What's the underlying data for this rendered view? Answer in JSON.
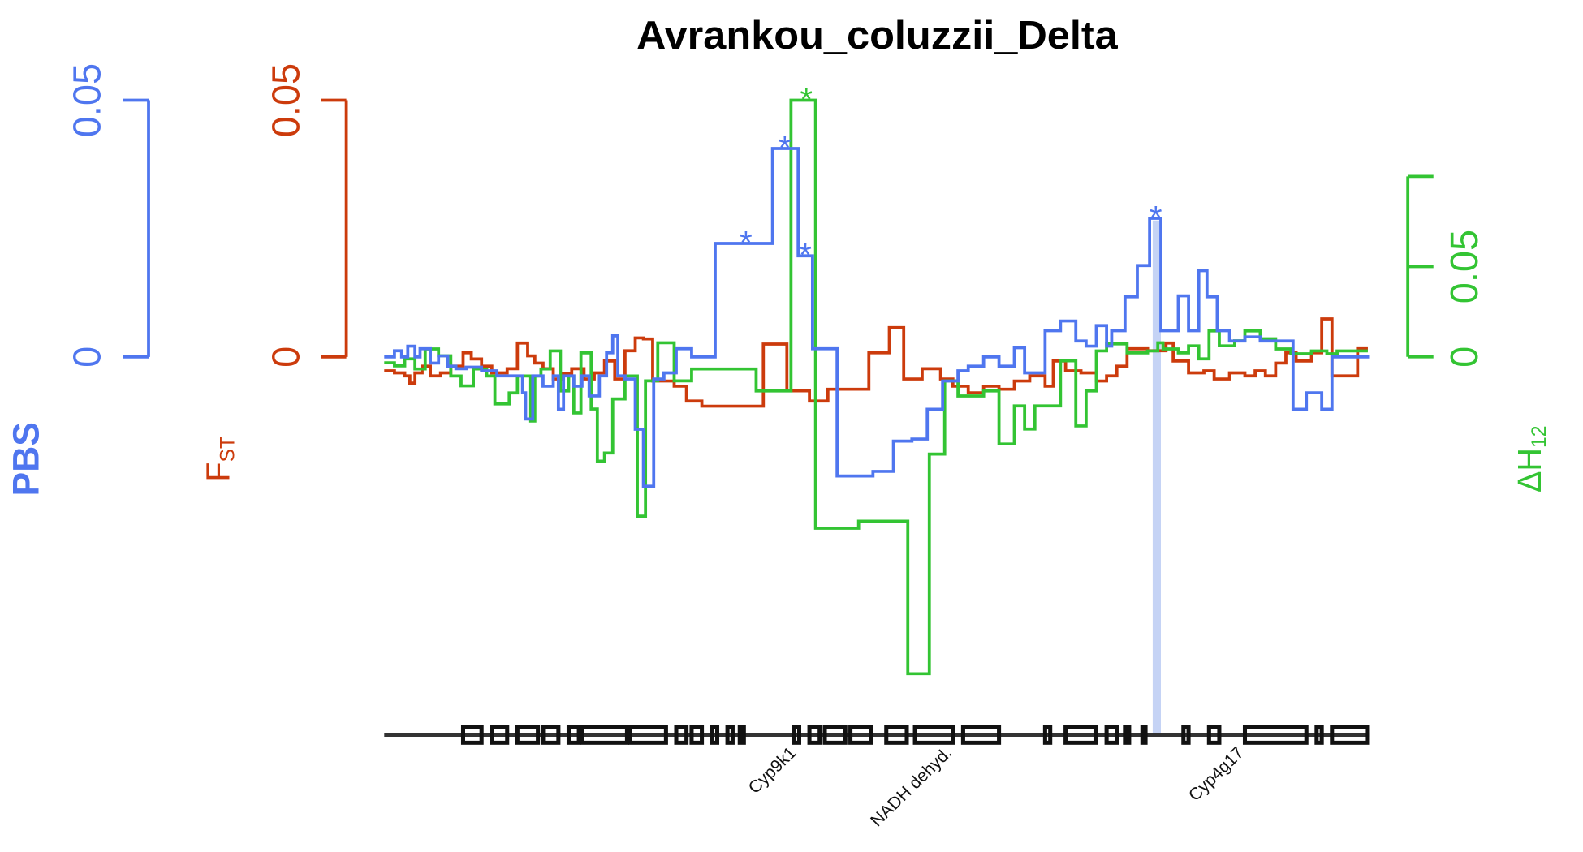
{
  "chart_data": {
    "type": "step",
    "title": "Avrankou_coluzzii_Delta",
    "xlim": [
      0,
      962
    ],
    "ylim": [
      -0.0736,
      0.05
    ],
    "yticks": [
      0,
      0.05
    ],
    "ylabel": "PBS",
    "y2lim": [
      -0.0736,
      0.05
    ],
    "y2ticks": [
      0,
      0.05
    ],
    "y2label": {
      "text": "F",
      "sub": "ST"
    },
    "y3lim": [
      -0.2094,
      0.1422
    ],
    "y3ticks": [
      0,
      0.05,
      {
        "value": 0.1,
        "label": null
      }
    ],
    "y3label": {
      "text": "ΔH",
      "sub": "12"
    },
    "series": [
      {
        "name": "PBS",
        "color": "#4f76ef",
        "axis": "y",
        "x": [
          0,
          10,
          17,
          23,
          30,
          35,
          45,
          53,
          62,
          70,
          80,
          95,
          110,
          125,
          135,
          138,
          145,
          155,
          165,
          170,
          175,
          185,
          193,
          200,
          210,
          217,
          223,
          228,
          235,
          245,
          253,
          263,
          273,
          285,
          300,
          323,
          379,
          404,
          418,
          442,
          477,
          497,
          515,
          530,
          545,
          560,
          570,
          585,
          600,
          615,
          625,
          645,
          660,
          675,
          685,
          695,
          705,
          710,
          723,
          735,
          747,
          758,
          770,
          775,
          785,
          795,
          803,
          813,
          825,
          840,
          855,
          870,
          887,
          900,
          915,
          925,
          962
        ],
        "values": [
          0,
          0.0012,
          0,
          0.0021,
          0,
          0.0016,
          -0.0012,
          0.0002,
          -0.0018,
          -0.0023,
          -0.002,
          -0.0027,
          -0.0037,
          -0.0037,
          -0.007,
          -0.0121,
          -0.0037,
          -0.0057,
          -0.0037,
          -0.0102,
          -0.0037,
          -0.0057,
          -0.0037,
          -0.0076,
          -0.0037,
          0.0008,
          0.0041,
          -0.0037,
          -0.0043,
          -0.0141,
          -0.0252,
          -0.0043,
          -0.0031,
          0.0016,
          0,
          0.0221,
          0.0406,
          0.0197,
          0.0016,
          -0.0232,
          -0.0223,
          -0.0164,
          -0.016,
          -0.0102,
          -0.0047,
          -0.0027,
          -0.0018,
          0,
          -0.0018,
          0.0018,
          -0.0031,
          0.0051,
          0.007,
          0.0031,
          0.0021,
          0.0061,
          0.0021,
          0.0051,
          0.0117,
          0.0178,
          0.027,
          0.0051,
          0.0051,
          0.0119,
          0.0051,
          0.0168,
          0.0117,
          0.0051,
          0.0031,
          0.0039,
          0.0031,
          0.0031,
          -0.0102,
          -0.007,
          -0.0102,
          0,
          0
        ]
      },
      {
        "name": "FST",
        "color": "#cc3b0c",
        "axis": "y2",
        "x": [
          0,
          10,
          20,
          25,
          30,
          37,
          45,
          55,
          65,
          77,
          85,
          95,
          105,
          120,
          130,
          140,
          147,
          155,
          165,
          173,
          183,
          195,
          205,
          215,
          225,
          235,
          245,
          253,
          262,
          283,
          295,
          310,
          370,
          393,
          415,
          433,
          473,
          493,
          507,
          525,
          543,
          555,
          570,
          585,
          600,
          615,
          630,
          645,
          653,
          665,
          680,
          695,
          705,
          715,
          725,
          745,
          763,
          770,
          785,
          800,
          810,
          825,
          840,
          850,
          860,
          870,
          880,
          890,
          905,
          915,
          925,
          950,
          960
        ],
        "values": [
          -0.0027,
          -0.0031,
          -0.0037,
          -0.0051,
          -0.0031,
          -0.0018,
          -0.0037,
          -0.0031,
          -0.0018,
          0.0008,
          -0.0004,
          -0.0018,
          -0.0031,
          -0.0023,
          0.0027,
          0.0002,
          -0.0012,
          -0.0023,
          -0.0043,
          -0.0033,
          -0.0023,
          -0.0043,
          -0.0031,
          -0.0008,
          -0.0043,
          0.0012,
          0.0037,
          0.0035,
          -0.0047,
          -0.0057,
          -0.0086,
          -0.0096,
          0.0025,
          -0.0066,
          -0.0086,
          -0.0063,
          0.0008,
          0.0057,
          -0.0043,
          -0.0023,
          -0.0043,
          -0.0057,
          -0.007,
          -0.0057,
          -0.0063,
          -0.0047,
          -0.0037,
          -0.0057,
          -0.0008,
          -0.0027,
          -0.0031,
          -0.0047,
          -0.0037,
          -0.0018,
          0.0016,
          0.0012,
          0.0027,
          -0.0008,
          -0.0031,
          -0.0027,
          -0.0043,
          -0.0031,
          -0.0037,
          -0.0027,
          -0.0037,
          -0.0012,
          0.0008,
          -0.0008,
          0.0008,
          0.0074,
          -0.0037,
          0.0016,
          0.0016
        ]
      },
      {
        "name": "ΔH12",
        "color": "#33c433",
        "axis": "y3",
        "x": [
          0,
          10,
          20,
          30,
          40,
          53,
          65,
          75,
          87,
          100,
          108,
          122,
          130,
          143,
          147,
          153,
          162,
          172,
          180,
          185,
          192,
          202,
          208,
          215,
          223,
          235,
          247,
          255,
          267,
          283,
          300,
          363,
          397,
          421,
          463,
          511,
          532,
          547,
          560,
          585,
          600,
          615,
          625,
          635,
          660,
          675,
          685,
          695,
          705,
          725,
          745,
          755,
          760,
          775,
          785,
          795,
          805,
          815,
          830,
          840,
          855,
          870,
          885,
          905,
          920,
          930,
          960
        ],
        "values": [
          -0.0033,
          -0.005,
          -0.0011,
          -0.0067,
          0.0044,
          0.0006,
          -0.0106,
          -0.0161,
          -0.0067,
          -0.0106,
          -0.0261,
          -0.02,
          -0.0106,
          -0.0356,
          -0.0106,
          -0.0067,
          0.0033,
          -0.0189,
          -0.0106,
          -0.0311,
          0.0022,
          -0.0289,
          -0.0578,
          -0.0533,
          -0.0233,
          -0.0106,
          -0.0883,
          -0.0133,
          0.0078,
          -0.0133,
          -0.0067,
          -0.0189,
          0.1422,
          -0.095,
          -0.0911,
          -0.1756,
          -0.0539,
          -0.0133,
          -0.0217,
          -0.0189,
          -0.0483,
          -0.0272,
          -0.04,
          -0.0272,
          -0.0022,
          -0.0383,
          -0.0189,
          0.0033,
          0.0072,
          0.0022,
          0.0033,
          0.0078,
          0.0044,
          0.0022,
          0.0061,
          -0.0011,
          0.0144,
          0.0061,
          0.0089,
          0.0144,
          0.01,
          0.0044,
          0.0017,
          0.0033,
          0.0017,
          0.0033,
          0.0033
        ]
      }
    ],
    "annotations": [
      {
        "text": "*",
        "x": 353,
        "y": 0.0221,
        "series": 0
      },
      {
        "text": "*",
        "x": 391,
        "y": 0.0406,
        "series": 0
      },
      {
        "text": "*",
        "x": 411,
        "y": 0.0197,
        "series": 0
      },
      {
        "text": "*",
        "x": 753,
        "y": 0.027,
        "series": 0
      },
      {
        "text": "*",
        "x": 412,
        "y": 0.1422,
        "series": 2
      }
    ],
    "highlight": [
      750,
      758
    ],
    "genes": [
      {
        "label": "Cyp9k1",
        "x": 403
      },
      {
        "label": "NADH dehyd.",
        "x": 555
      },
      {
        "label": "Cyp4g17",
        "x": 840
      }
    ],
    "features": [
      [
        77,
        95
      ],
      [
        105,
        120
      ],
      [
        130,
        150
      ],
      [
        155,
        170
      ],
      [
        180,
        190
      ],
      [
        193,
        237
      ],
      [
        240,
        275
      ],
      [
        285,
        295
      ],
      [
        300,
        310
      ],
      [
        320,
        325
      ],
      [
        335,
        340
      ],
      [
        347,
        351
      ],
      [
        400,
        405
      ],
      [
        415,
        425
      ],
      [
        430,
        450
      ],
      [
        455,
        475
      ],
      [
        490,
        510
      ],
      [
        518,
        555
      ],
      [
        565,
        600
      ],
      [
        645,
        650
      ],
      [
        665,
        695
      ],
      [
        705,
        715
      ],
      [
        723,
        727
      ],
      [
        740,
        743
      ],
      [
        780,
        785
      ],
      [
        805,
        815
      ],
      [
        840,
        900
      ],
      [
        910,
        915
      ],
      [
        925,
        960
      ]
    ]
  }
}
